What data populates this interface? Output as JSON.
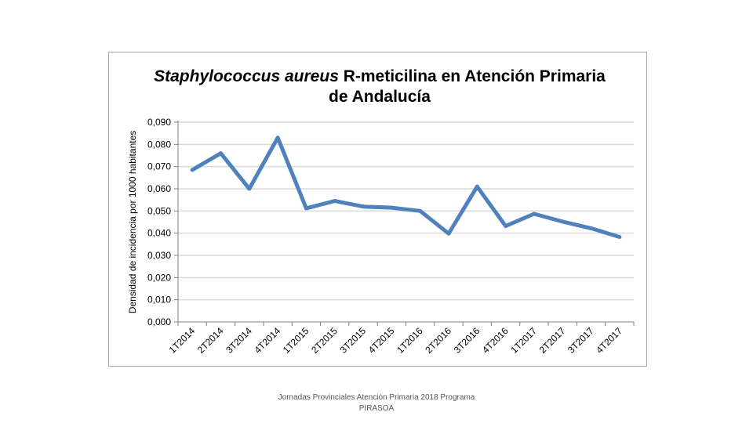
{
  "chart_data": {
    "type": "line",
    "title": {
      "line1_italic": "Staphylococcus aureus",
      "line1_rest": " R-meticilina en Atención Primaria",
      "line2": "de Andalucía"
    },
    "xlabel": "",
    "ylabel": "Densidad de incidencia por 1000 habitantes",
    "ylim": [
      0,
      0.09
    ],
    "yticks": [
      0,
      0.01,
      0.02,
      0.03,
      0.04,
      0.05,
      0.06,
      0.07,
      0.08,
      0.09
    ],
    "ytick_labels": [
      "0,000",
      "0,010",
      "0,020",
      "0,030",
      "0,040",
      "0,050",
      "0,060",
      "0,070",
      "0,080",
      "0,090"
    ],
    "grid": true,
    "legend": false,
    "categories": [
      "1T2014",
      "2T2014",
      "3T2014",
      "4T2014",
      "1T2015",
      "2T2015",
      "3T2015",
      "4T2015",
      "1T2016",
      "2T2016",
      "3T2016",
      "4T2016",
      "1T2017",
      "2T2017",
      "3T2017",
      "4T2017"
    ],
    "series": [
      {
        "values": [
          0.0685,
          0.076,
          0.06,
          0.083,
          0.0512,
          0.0545,
          0.052,
          0.0515,
          0.05,
          0.0398,
          0.061,
          0.0432,
          0.0487,
          0.0452,
          0.0422,
          0.0383
        ],
        "color": "#4f81bd"
      }
    ]
  },
  "footer": {
    "line1": "Jornadas Provinciales Atención Primaria 2018  Programa",
    "line2": "PIRASOA"
  }
}
